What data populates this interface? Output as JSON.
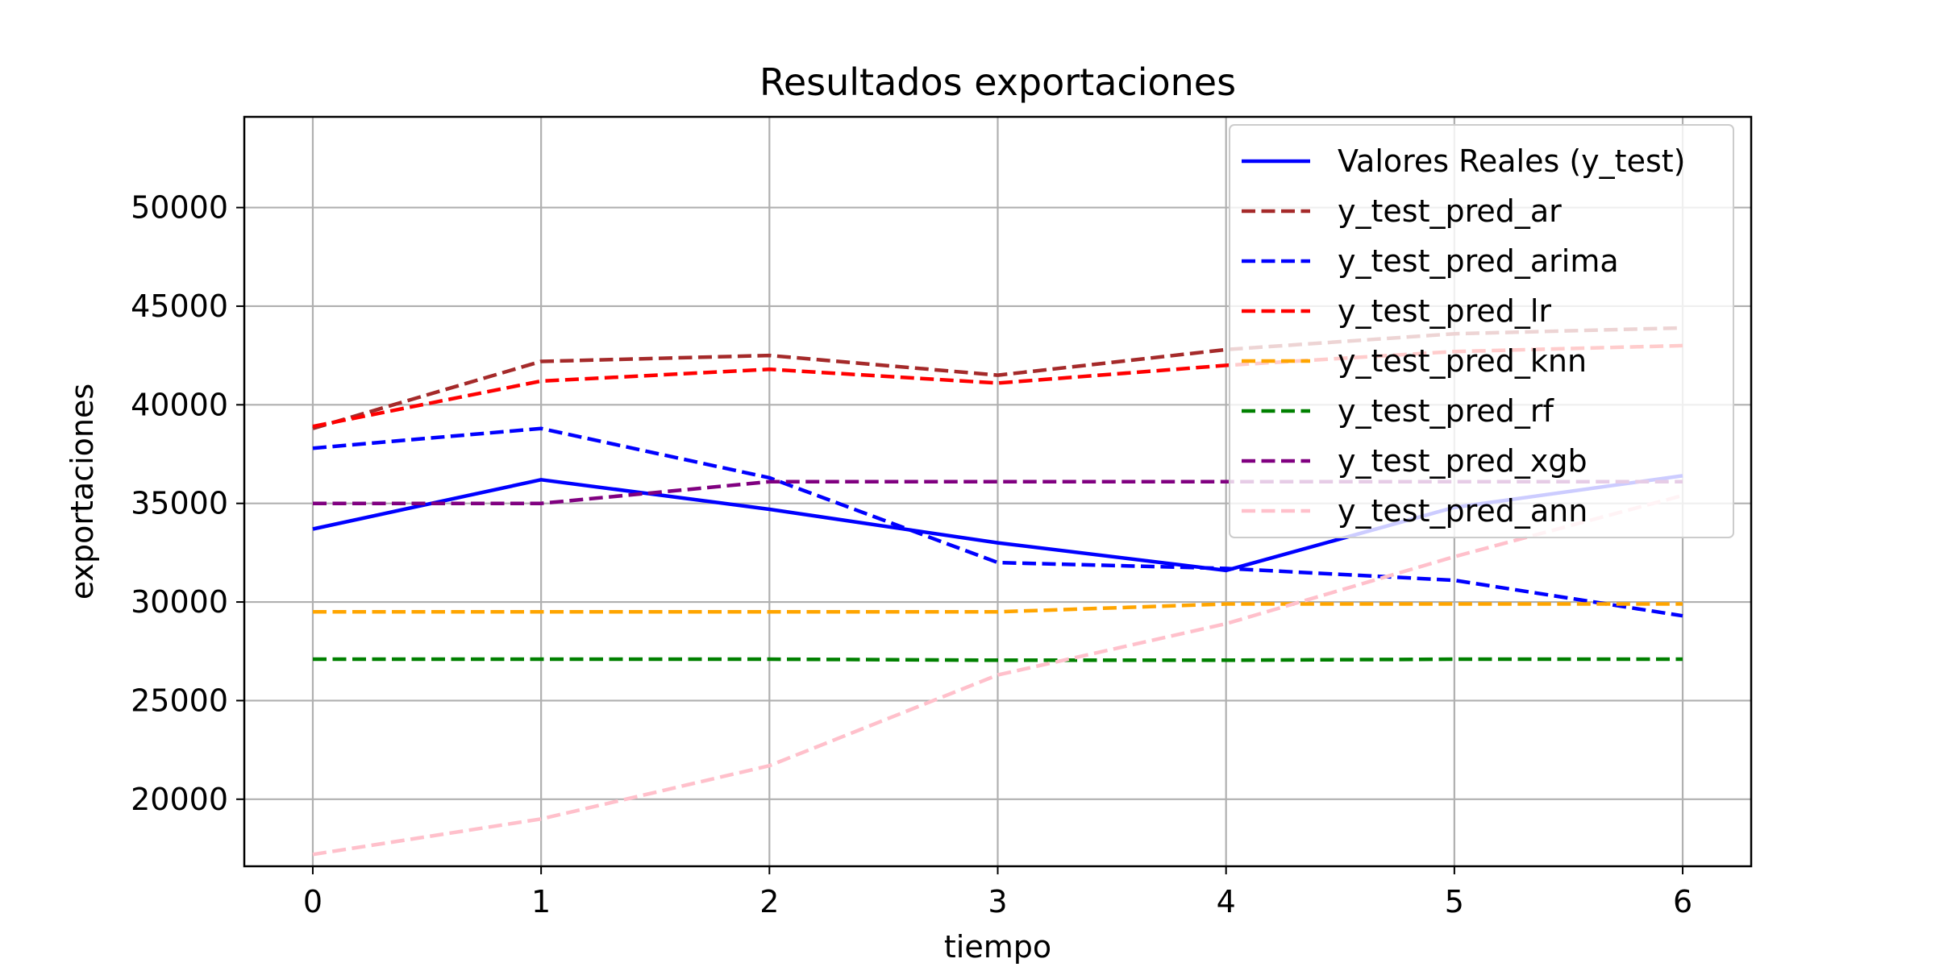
{
  "chart_data": {
    "type": "line",
    "title": "Resultados exportaciones",
    "xlabel": "tiempo",
    "ylabel": "exportaciones",
    "x": [
      0,
      1,
      2,
      3,
      4,
      5,
      6
    ],
    "xlim": [
      -0.3,
      6.3
    ],
    "ylim": [
      16600,
      54600
    ],
    "xticks": [
      "0",
      "1",
      "2",
      "3",
      "4",
      "5",
      "6"
    ],
    "yticks": [
      20000,
      25000,
      30000,
      35000,
      40000,
      45000,
      50000
    ],
    "grid": true,
    "legend_position": "top-right",
    "series": [
      {
        "name": "Valores Reales (y_test)",
        "color": "#0000ff",
        "style": "solid",
        "values": [
          33700,
          36200,
          34700,
          33000,
          31600,
          34800,
          36400
        ]
      },
      {
        "name": "y_test_pred_ar",
        "color": "#a52a2a",
        "style": "dashed",
        "values": [
          38800,
          42200,
          42500,
          41500,
          42800,
          43600,
          43900
        ]
      },
      {
        "name": "y_test_pred_arima",
        "color": "#0000ff",
        "style": "dashed",
        "values": [
          37800,
          38800,
          36300,
          32000,
          31700,
          31100,
          29300
        ]
      },
      {
        "name": "y_test_pred_lr",
        "color": "#ff0000",
        "style": "dashed",
        "values": [
          38900,
          41200,
          41800,
          41100,
          42000,
          42700,
          43000
        ]
      },
      {
        "name": "y_test_pred_knn",
        "color": "#ffa500",
        "style": "dashed",
        "values": [
          29500,
          29500,
          29500,
          29500,
          29900,
          29900,
          29900
        ]
      },
      {
        "name": "y_test_pred_rf",
        "color": "#008000",
        "style": "dashed",
        "values": [
          27100,
          27100,
          27100,
          27050,
          27050,
          27100,
          27100
        ]
      },
      {
        "name": "y_test_pred_xgb",
        "color": "#800080",
        "style": "dashed",
        "values": [
          35000,
          35000,
          36100,
          36100,
          36100,
          36100,
          36100
        ]
      },
      {
        "name": "y_test_pred_ann",
        "color": "#ffc0cb",
        "style": "dashed",
        "values": [
          17200,
          19000,
          21700,
          26300,
          28900,
          32300,
          35400
        ]
      }
    ]
  }
}
